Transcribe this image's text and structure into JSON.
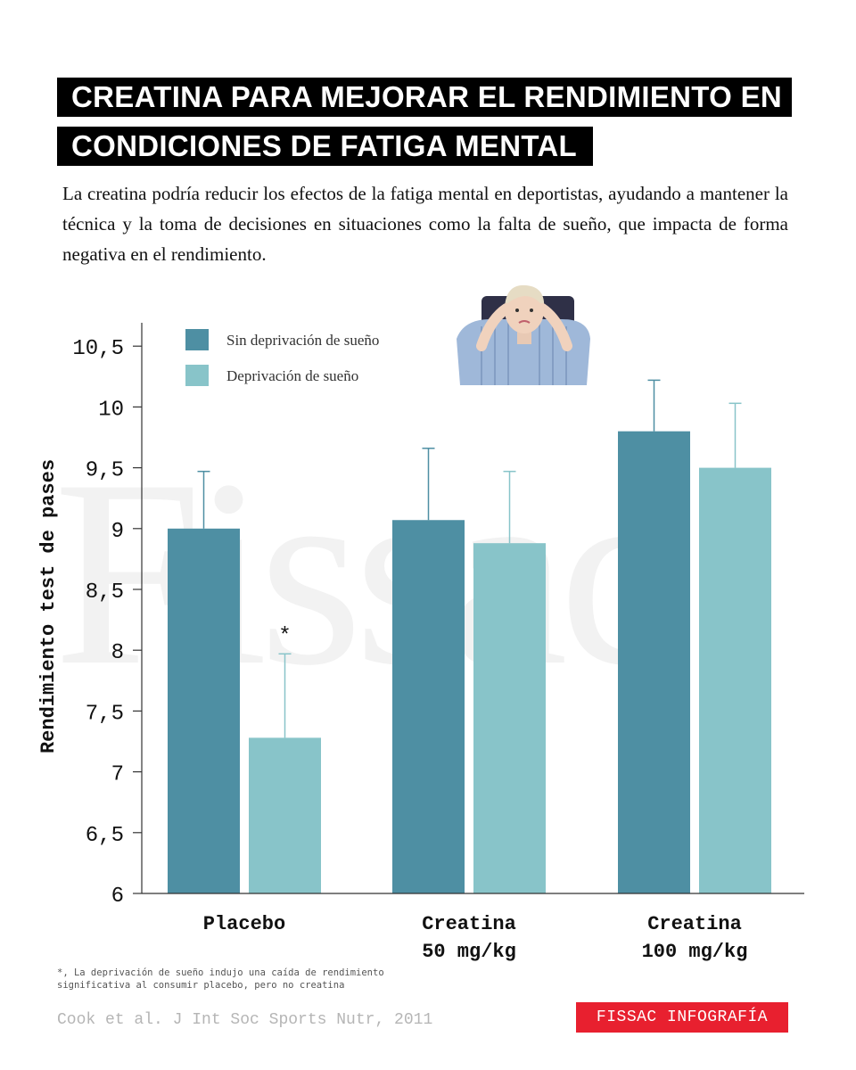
{
  "title": {
    "line1": "CREATINA PARA MEJORAR EL RENDIMIENTO EN",
    "line2": "CONDICIONES DE FATIGA MENTAL"
  },
  "subtitle": "La creatina podría reducir los efectos de la fatiga mental en deportistas, ayudando a mantener la técnica y la toma de decisiones en situaciones como la falta de sueño, que impacta de forma negativa en el rendimiento.",
  "watermark": "Fissac",
  "chart_data": {
    "type": "bar",
    "categories": [
      [
        "Placebo"
      ],
      [
        "Creatina",
        "50 mg/kg"
      ],
      [
        "Creatina",
        "100 mg/kg"
      ]
    ],
    "series": [
      {
        "name": "Sin deprivación de sueño",
        "color": "#4e8fa3",
        "values": [
          9.0,
          9.07,
          9.8
        ],
        "error_upper": [
          9.47,
          9.66,
          10.22
        ]
      },
      {
        "name": "Deprivación de sueño",
        "color": "#88c4c9",
        "values": [
          7.28,
          8.88,
          9.5
        ],
        "error_upper": [
          7.97,
          9.47,
          10.03
        ]
      }
    ],
    "ylabel": "Rendimiento test de pases",
    "xlabel": "",
    "ylim": [
      6,
      10.7
    ],
    "yticks": [
      "6",
      "6,5",
      "7",
      "7,5",
      "8",
      "8,5",
      "9",
      "9,5",
      "10",
      "10,5"
    ],
    "ytick_values": [
      6,
      6.5,
      7,
      7.5,
      8,
      8.5,
      9,
      9.5,
      10,
      10.5
    ],
    "annotations": [
      {
        "text": "*",
        "category_index": 0,
        "series_index": 1
      }
    ],
    "legend_position": "top-left",
    "grid": false
  },
  "illustration": {
    "icon": "tired-person-icon"
  },
  "footnote": "*, La deprivación de sueño indujo una caída de rendimiento significativa al consumir placebo, pero no creatina",
  "source": "Cook et al. J Int Soc Sports Nutr, 2011",
  "brand": "FISSAC INFOGRAFÍA"
}
